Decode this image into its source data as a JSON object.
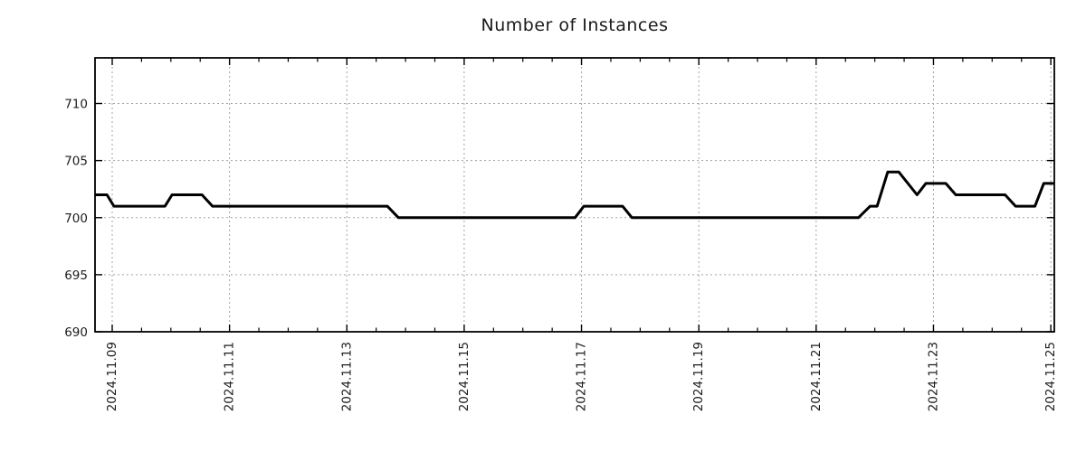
{
  "chart_data": {
    "type": "line",
    "title": "Number of Instances",
    "x_axis": {
      "tick_labels": [
        "2024.11.09",
        "2024.11.11",
        "2024.11.13",
        "2024.11.15",
        "2024.11.17",
        "2024.11.19",
        "2024.11.21",
        "2024.11.23",
        "2024.11.25"
      ],
      "tick_positions_days": [
        0,
        2,
        4,
        6,
        8,
        10,
        12,
        14,
        16
      ],
      "minor_tick_interval_days": 0.5,
      "range_days": [
        -0.293,
        16.06
      ],
      "unit": "days since 2024.11.09"
    },
    "y_axis": {
      "tick_labels": [
        "690",
        "695",
        "700",
        "705",
        "710"
      ],
      "tick_values": [
        690,
        695,
        700,
        705,
        710
      ],
      "range": [
        690,
        714
      ]
    },
    "series": [
      {
        "name": "Number of Instances",
        "color": "#000000",
        "line_width": 3,
        "points_day_value": [
          [
            -0.29,
            702
          ],
          [
            -0.09,
            702
          ],
          [
            0.03,
            701
          ],
          [
            0.9,
            701
          ],
          [
            1.02,
            702
          ],
          [
            1.53,
            702
          ],
          [
            1.71,
            701
          ],
          [
            4.69,
            701
          ],
          [
            4.88,
            700
          ],
          [
            7.89,
            700
          ],
          [
            8.04,
            701
          ],
          [
            8.7,
            701
          ],
          [
            8.86,
            700
          ],
          [
            12.72,
            700
          ],
          [
            12.92,
            701
          ],
          [
            13.04,
            701
          ],
          [
            13.22,
            704
          ],
          [
            13.41,
            704
          ],
          [
            13.72,
            702
          ],
          [
            13.87,
            703
          ],
          [
            14.21,
            703
          ],
          [
            14.38,
            702
          ],
          [
            15.22,
            702
          ],
          [
            15.4,
            701
          ],
          [
            15.73,
            701
          ],
          [
            15.88,
            703
          ],
          [
            16.06,
            703
          ]
        ]
      }
    ],
    "grid": {
      "show": true,
      "line_style": "dotted",
      "color": "#a3a3a3"
    },
    "colors": {
      "background": "#ffffff",
      "text": "#1c1c1c",
      "spine": "#000000"
    }
  }
}
